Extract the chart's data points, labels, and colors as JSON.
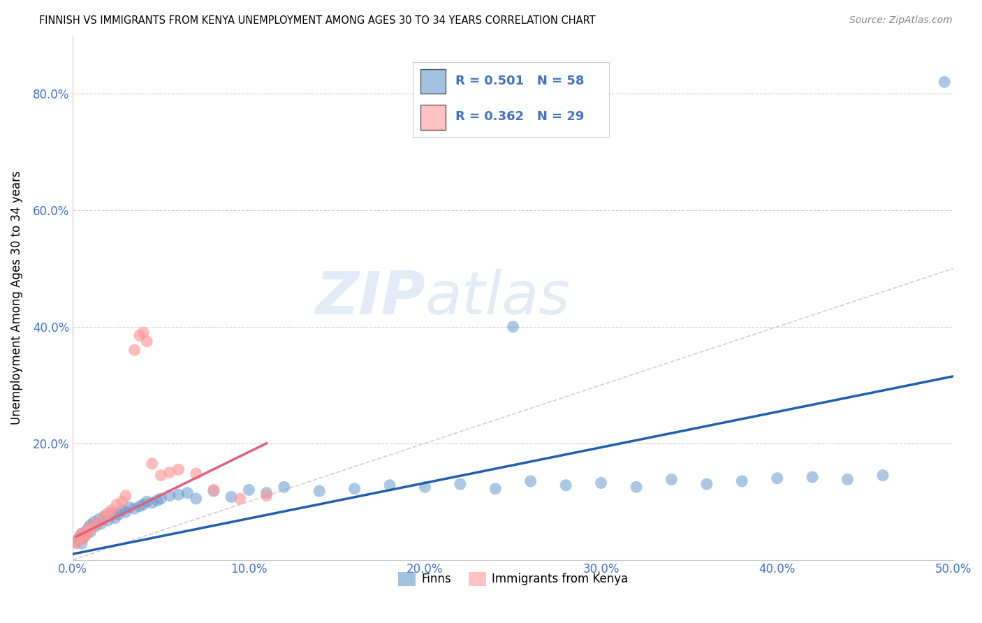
{
  "title": "FINNISH VS IMMIGRANTS FROM KENYA UNEMPLOYMENT AMONG AGES 30 TO 34 YEARS CORRELATION CHART",
  "source": "Source: ZipAtlas.com",
  "tick_color": "#4472C4",
  "ylabel": "Unemployment Among Ages 30 to 34 years",
  "xlim": [
    0.0,
    0.5
  ],
  "ylim": [
    0.0,
    0.9
  ],
  "xticks": [
    0.0,
    0.1,
    0.2,
    0.3,
    0.4,
    0.5
  ],
  "yticks": [
    0.0,
    0.2,
    0.4,
    0.6,
    0.8
  ],
  "ytick_labels": [
    "",
    "20.0%",
    "40.0%",
    "60.0%",
    "80.0%"
  ],
  "xtick_labels": [
    "0.0%",
    "10.0%",
    "20.0%",
    "30.0%",
    "40.0%",
    "50.0%"
  ],
  "grid_color": "#cccccc",
  "background_color": "#ffffff",
  "blue_color": "#6699CC",
  "pink_color": "#FF9999",
  "blue_line_color": "#1F5FAD",
  "pink_line_color": "#E06080",
  "diagonal_color": "#CCCCDD",
  "legend_label_blue": "Finns",
  "legend_label_pink": "Immigrants from Kenya",
  "finns_x": [
    0.002,
    0.003,
    0.004,
    0.005,
    0.005,
    0.006,
    0.007,
    0.008,
    0.009,
    0.01,
    0.01,
    0.012,
    0.013,
    0.015,
    0.016,
    0.018,
    0.02,
    0.022,
    0.024,
    0.026,
    0.028,
    0.03,
    0.032,
    0.035,
    0.038,
    0.04,
    0.042,
    0.045,
    0.048,
    0.05,
    0.055,
    0.06,
    0.065,
    0.07,
    0.08,
    0.09,
    0.1,
    0.11,
    0.12,
    0.14,
    0.16,
    0.18,
    0.2,
    0.22,
    0.24,
    0.26,
    0.28,
    0.3,
    0.32,
    0.34,
    0.36,
    0.38,
    0.4,
    0.42,
    0.44,
    0.46,
    0.495,
    0.25
  ],
  "finns_y": [
    0.03,
    0.035,
    0.04,
    0.028,
    0.045,
    0.038,
    0.042,
    0.05,
    0.055,
    0.06,
    0.048,
    0.065,
    0.058,
    0.07,
    0.062,
    0.075,
    0.068,
    0.08,
    0.072,
    0.078,
    0.085,
    0.082,
    0.09,
    0.088,
    0.092,
    0.095,
    0.1,
    0.098,
    0.102,
    0.105,
    0.11,
    0.112,
    0.115,
    0.105,
    0.118,
    0.108,
    0.12,
    0.115,
    0.125,
    0.118,
    0.122,
    0.128,
    0.125,
    0.13,
    0.122,
    0.135,
    0.128,
    0.132,
    0.125,
    0.138,
    0.13,
    0.135,
    0.14,
    0.142,
    0.138,
    0.145,
    0.82,
    0.4
  ],
  "kenya_x": [
    0.002,
    0.003,
    0.004,
    0.005,
    0.006,
    0.007,
    0.008,
    0.009,
    0.01,
    0.012,
    0.015,
    0.018,
    0.02,
    0.022,
    0.025,
    0.028,
    0.03,
    0.035,
    0.038,
    0.04,
    0.042,
    0.045,
    0.05,
    0.055,
    0.06,
    0.07,
    0.08,
    0.095,
    0.11
  ],
  "kenya_y": [
    0.028,
    0.035,
    0.04,
    0.045,
    0.038,
    0.042,
    0.048,
    0.05,
    0.055,
    0.06,
    0.065,
    0.075,
    0.08,
    0.085,
    0.095,
    0.1,
    0.11,
    0.36,
    0.385,
    0.39,
    0.375,
    0.165,
    0.145,
    0.15,
    0.155,
    0.148,
    0.12,
    0.105,
    0.11
  ],
  "blue_trend_x": [
    0.0,
    0.5
  ],
  "blue_trend_y": [
    0.01,
    0.315
  ],
  "pink_trend_x": [
    0.002,
    0.11
  ],
  "pink_trend_y": [
    0.04,
    0.2
  ]
}
